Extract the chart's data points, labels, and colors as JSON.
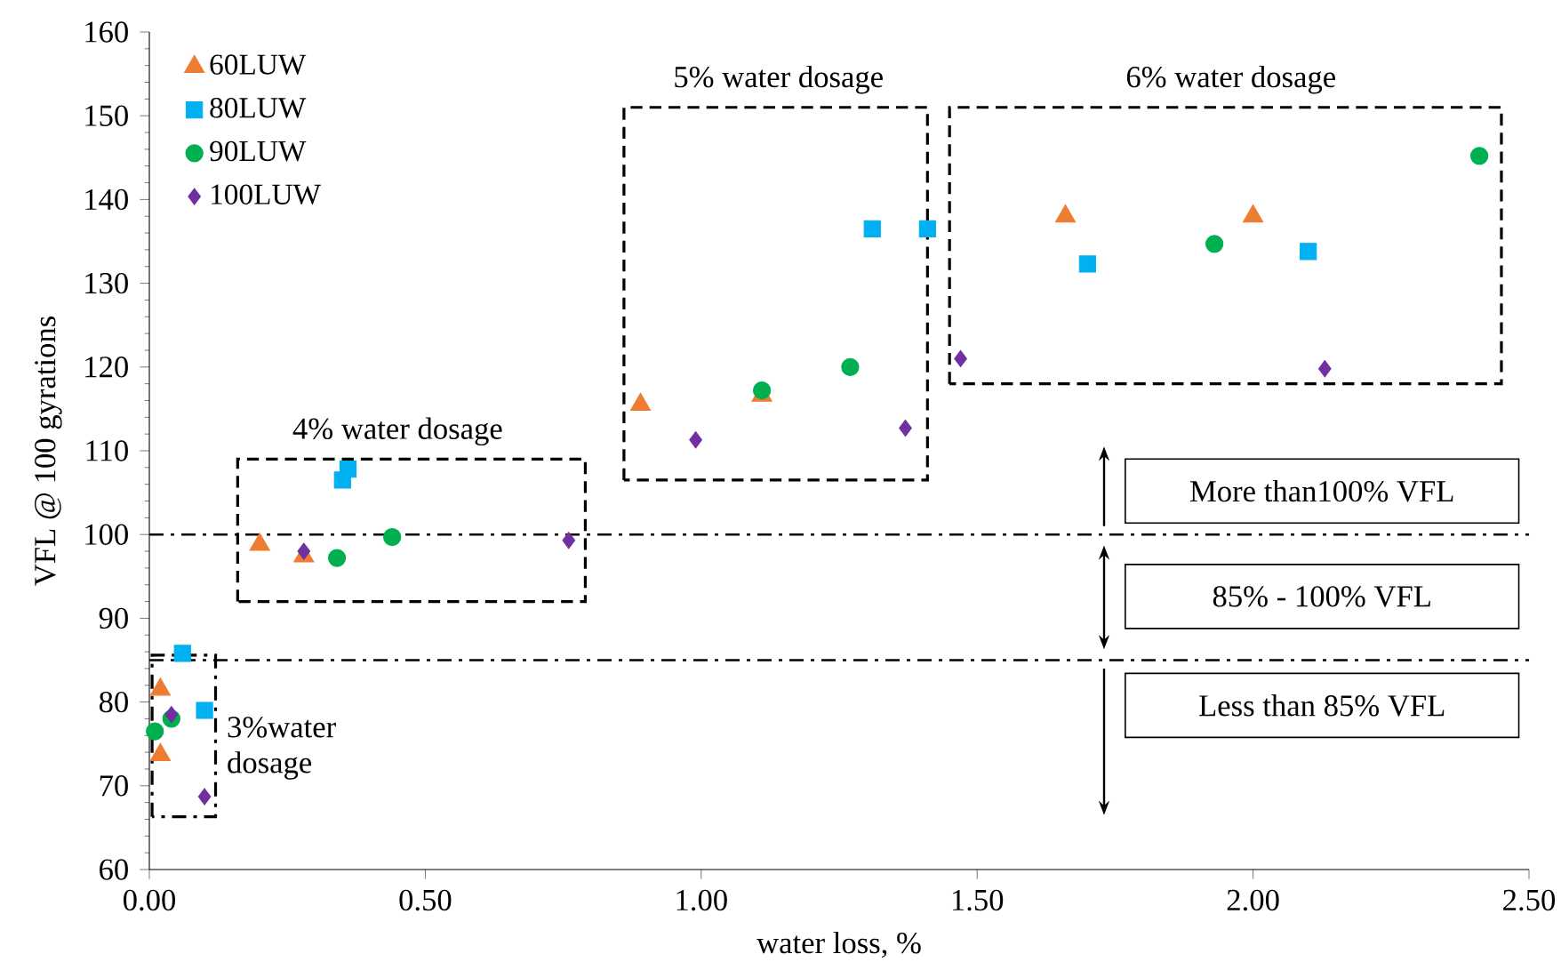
{
  "chart_data": {
    "type": "scatter",
    "xlabel": "water loss, %",
    "ylabel": "VFL @ 100 gyrations",
    "xlim": [
      0,
      2.5
    ],
    "ylim": [
      60,
      160
    ],
    "xticks": [
      {
        "value": 0,
        "label": "0.00"
      },
      {
        "value": 0.5,
        "label": "0.50"
      },
      {
        "value": 1,
        "label": "1.00"
      },
      {
        "value": 1.5,
        "label": "1.50"
      },
      {
        "value": 2,
        "label": "2.00"
      },
      {
        "value": 2.5,
        "label": "2.50"
      }
    ],
    "yticks": [
      60,
      70,
      80,
      90,
      100,
      110,
      120,
      130,
      140,
      150,
      160
    ],
    "grid": false,
    "legend": "top left",
    "series": [
      {
        "name": "60LUW",
        "color": "#ed7d31",
        "marker": "triangle",
        "x": [
          0.02,
          0.02,
          0.2,
          0.28,
          0.89,
          1.11,
          1.66,
          2.0
        ],
        "values": [
          81.5,
          73.7,
          98.8,
          97.4,
          115.5,
          116.6,
          138,
          138
        ]
      },
      {
        "name": "80LUW",
        "color": "#00b0f0",
        "marker": "square",
        "x": [
          0.06,
          0.1,
          0.35,
          0.36,
          1.31,
          1.41,
          1.7,
          2.1
        ],
        "values": [
          85.8,
          79,
          106.5,
          107.8,
          136.5,
          136.5,
          132.3,
          133.8
        ]
      },
      {
        "name": "90LUW",
        "color": "#00b050",
        "marker": "circle",
        "x": [
          0.01,
          0.04,
          0.34,
          0.44,
          1.11,
          1.27,
          1.93,
          2.41
        ],
        "values": [
          76.5,
          78,
          97.2,
          99.7,
          117.2,
          120,
          134.7,
          145.2
        ]
      },
      {
        "name": "100LUW",
        "color": "#7030a0",
        "marker": "diamond",
        "x": [
          0.04,
          0.1,
          0.28,
          0.76,
          0.99,
          1.37,
          1.47,
          2.13
        ],
        "values": [
          78.5,
          68.7,
          98,
          99.3,
          111.3,
          112.7,
          121,
          119.8
        ]
      }
    ],
    "ref_lines": [
      {
        "axis": "y",
        "value": 100,
        "color": "#000000",
        "line_style": "dashdot"
      },
      {
        "axis": "y",
        "value": 85,
        "color": "#000000",
        "line_style": "dashdot"
      }
    ],
    "annotations": [
      "4% water dosage",
      "5% water dosage",
      "6% water dosage",
      "3%water dosage",
      "More than100% VFL",
      "85% - 100% VFL",
      "Less than 85% VFL"
    ]
  }
}
